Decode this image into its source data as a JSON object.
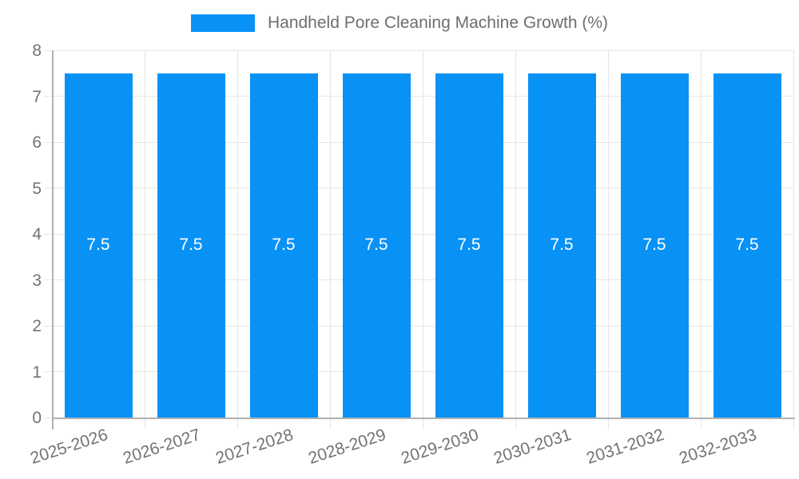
{
  "chart_data": {
    "type": "bar",
    "title": "Handheld Pore Cleaning Machine Growth (%)",
    "categories": [
      "2025-2026",
      "2026-2027",
      "2027-2028",
      "2028-2029",
      "2029-2030",
      "2030-2031",
      "2031-2032",
      "2032-2033"
    ],
    "series": [
      {
        "name": "Handheld Pore Cleaning Machine Growth (%)",
        "values": [
          7.5,
          7.5,
          7.5,
          7.5,
          7.5,
          7.5,
          7.5,
          7.5
        ]
      }
    ],
    "bar_value_labels": [
      "7.5",
      "7.5",
      "7.5",
      "7.5",
      "7.5",
      "7.5",
      "7.5",
      "7.5"
    ],
    "xlabel": "",
    "ylabel": "",
    "ylim": [
      0,
      8
    ],
    "yticks": [
      0,
      1,
      2,
      3,
      4,
      5,
      6,
      7,
      8
    ],
    "grid": true,
    "legend_position": "top",
    "x_tick_rotation_deg": -18,
    "colors": {
      "bar": "#0992f6",
      "bar_label": "#ffffff",
      "grid": "#e6e6e6",
      "axis": "#b1b1b1",
      "tick_text": "#737373",
      "legend_text": "#6e6e6e",
      "background": "#ffffff"
    }
  }
}
